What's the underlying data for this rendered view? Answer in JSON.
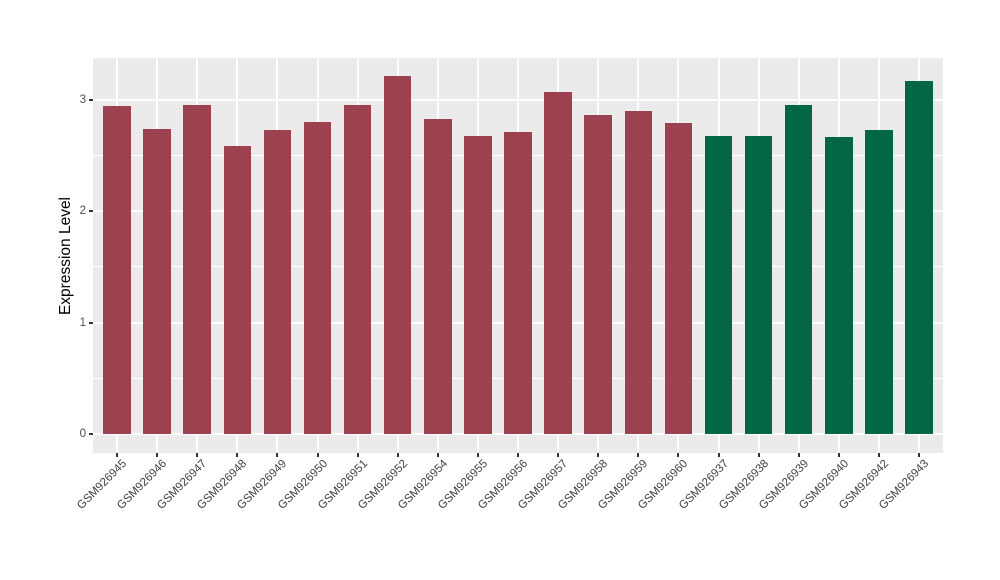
{
  "figure": {
    "background": "#FFFFFF",
    "panel_background": "#EBEBEB",
    "gridline_color": "#FFFFFF",
    "tick_mark_color": "#333333",
    "tick_label_color": "#4D4D4D",
    "axis_title_color": "#000000"
  },
  "chart_data": {
    "type": "bar",
    "title": "",
    "xlabel": "",
    "ylabel": "Expression Level",
    "ylim": [
      -0.18,
      3.38
    ],
    "yticks": [
      0,
      1,
      2,
      3
    ],
    "yticks_minor": [
      0.5,
      1.5,
      2.5
    ],
    "grid": "horizontal major+minor white lines and vertical white lines at each category center on gray panel",
    "legend_position": "none",
    "bar_colors": {
      "group1": "#9C4150",
      "group2": "#036647"
    },
    "bars": [
      {
        "label": "GSM926945",
        "value": 2.95,
        "group": "group1"
      },
      {
        "label": "GSM926946",
        "value": 2.74,
        "group": "group1"
      },
      {
        "label": "GSM926947",
        "value": 2.96,
        "group": "group1"
      },
      {
        "label": "GSM926948",
        "value": 2.59,
        "group": "group1"
      },
      {
        "label": "GSM926949",
        "value": 2.73,
        "group": "group1"
      },
      {
        "label": "GSM926950",
        "value": 2.8,
        "group": "group1"
      },
      {
        "label": "GSM926951",
        "value": 2.96,
        "group": "group1"
      },
      {
        "label": "GSM926952",
        "value": 3.22,
        "group": "group1"
      },
      {
        "label": "GSM926954",
        "value": 2.83,
        "group": "group1"
      },
      {
        "label": "GSM926955",
        "value": 2.68,
        "group": "group1"
      },
      {
        "label": "GSM926956",
        "value": 2.71,
        "group": "group1"
      },
      {
        "label": "GSM926957",
        "value": 3.07,
        "group": "group1"
      },
      {
        "label": "GSM926958",
        "value": 2.87,
        "group": "group1"
      },
      {
        "label": "GSM926959",
        "value": 2.9,
        "group": "group1"
      },
      {
        "label": "GSM926960",
        "value": 2.79,
        "group": "group1"
      },
      {
        "label": "GSM926937",
        "value": 2.68,
        "group": "group2"
      },
      {
        "label": "GSM926938",
        "value": 2.68,
        "group": "group2"
      },
      {
        "label": "GSM926939",
        "value": 2.96,
        "group": "group2"
      },
      {
        "label": "GSM926940",
        "value": 2.67,
        "group": "group2"
      },
      {
        "label": "GSM926942",
        "value": 2.73,
        "group": "group2"
      },
      {
        "label": "GSM926943",
        "value": 3.17,
        "group": "group2"
      }
    ]
  }
}
